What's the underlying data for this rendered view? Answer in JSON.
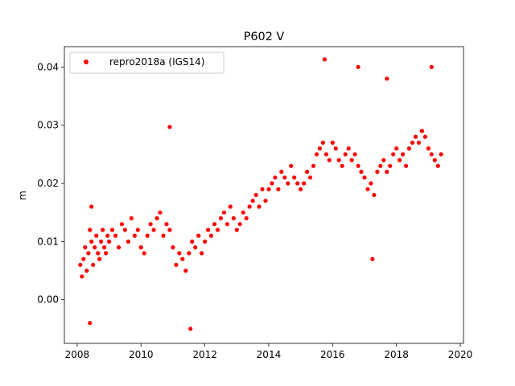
{
  "chart_data": {
    "type": "scatter",
    "title": "P602 V",
    "xlabel": "",
    "ylabel": "m",
    "xlim": [
      2007.6,
      2020.1
    ],
    "ylim": [
      -0.0075,
      0.0435
    ],
    "xticks": [
      2008,
      2010,
      2012,
      2014,
      2016,
      2018,
      2020
    ],
    "xtick_labels": [
      "2008",
      "2010",
      "2012",
      "2014",
      "2016",
      "2018",
      "2020"
    ],
    "yticks": [
      0.0,
      0.01,
      0.02,
      0.03,
      0.04
    ],
    "ytick_labels": [
      "0.00",
      "0.01",
      "0.02",
      "0.03",
      "0.04"
    ],
    "grid": false,
    "legend_position": "upper-left",
    "series": [
      {
        "name": "repro2018a (IGS14)",
        "color": "#ff0000",
        "marker": "circle",
        "x": [
          2008.1,
          2008.15,
          2008.2,
          2008.25,
          2008.3,
          2008.35,
          2008.4,
          2008.45,
          2008.5,
          2008.55,
          2008.6,
          2008.65,
          2008.7,
          2008.75,
          2008.8,
          2008.85,
          2008.9,
          2008.95,
          2009.0,
          2009.1,
          2009.2,
          2009.3,
          2009.4,
          2009.5,
          2009.6,
          2009.7,
          2009.8,
          2009.9,
          2010.0,
          2010.1,
          2010.2,
          2010.3,
          2010.4,
          2010.5,
          2010.6,
          2010.7,
          2010.8,
          2010.9,
          2011.0,
          2011.1,
          2011.2,
          2011.3,
          2011.4,
          2011.5,
          2011.6,
          2011.7,
          2011.8,
          2011.9,
          2012.0,
          2012.1,
          2012.2,
          2012.3,
          2012.4,
          2012.5,
          2012.6,
          2012.7,
          2012.8,
          2012.9,
          2013.0,
          2013.1,
          2013.2,
          2013.3,
          2013.4,
          2013.5,
          2013.6,
          2013.7,
          2013.8,
          2013.9,
          2014.0,
          2014.1,
          2014.2,
          2014.3,
          2014.4,
          2014.5,
          2014.6,
          2014.7,
          2014.8,
          2014.9,
          2015.0,
          2015.1,
          2015.2,
          2015.3,
          2015.4,
          2015.5,
          2015.6,
          2015.7,
          2015.8,
          2015.9,
          2016.0,
          2016.1,
          2016.2,
          2016.3,
          2016.4,
          2016.5,
          2016.6,
          2016.7,
          2016.8,
          2016.9,
          2017.0,
          2017.1,
          2017.2,
          2017.3,
          2017.4,
          2017.5,
          2017.6,
          2017.7,
          2017.8,
          2017.9,
          2018.0,
          2018.1,
          2018.2,
          2018.3,
          2018.4,
          2018.5,
          2018.6,
          2018.7,
          2018.8,
          2018.9,
          2019.0,
          2019.1,
          2019.2,
          2019.3,
          2019.4,
          2008.4,
          2010.9,
          2015.75,
          2016.8,
          2019.1,
          2011.55,
          2017.7,
          2017.25,
          2008.45
        ],
        "y": [
          0.006,
          0.004,
          0.007,
          0.009,
          0.005,
          0.008,
          0.012,
          0.01,
          0.006,
          0.009,
          0.011,
          0.008,
          0.007,
          0.01,
          0.012,
          0.009,
          0.008,
          0.011,
          0.01,
          0.012,
          0.011,
          0.009,
          0.013,
          0.012,
          0.01,
          0.014,
          0.011,
          0.012,
          0.009,
          0.008,
          0.011,
          0.013,
          0.012,
          0.014,
          0.015,
          0.011,
          0.013,
          0.012,
          0.009,
          0.006,
          0.008,
          0.007,
          0.005,
          0.008,
          0.01,
          0.009,
          0.011,
          0.008,
          0.01,
          0.012,
          0.011,
          0.013,
          0.012,
          0.014,
          0.015,
          0.013,
          0.016,
          0.014,
          0.012,
          0.013,
          0.015,
          0.014,
          0.016,
          0.017,
          0.018,
          0.016,
          0.019,
          0.017,
          0.019,
          0.02,
          0.021,
          0.019,
          0.022,
          0.021,
          0.02,
          0.023,
          0.021,
          0.02,
          0.019,
          0.02,
          0.022,
          0.021,
          0.023,
          0.025,
          0.026,
          0.027,
          0.025,
          0.024,
          0.027,
          0.026,
          0.024,
          0.023,
          0.025,
          0.026,
          0.024,
          0.025,
          0.023,
          0.022,
          0.021,
          0.019,
          0.02,
          0.018,
          0.022,
          0.023,
          0.024,
          0.022,
          0.023,
          0.025,
          0.026,
          0.024,
          0.025,
          0.023,
          0.026,
          0.027,
          0.028,
          0.027,
          0.029,
          0.028,
          0.026,
          0.025,
          0.024,
          0.023,
          0.025,
          -0.004,
          0.0297,
          0.0413,
          0.04,
          0.04,
          -0.005,
          0.038,
          0.007,
          0.016
        ]
      }
    ]
  }
}
